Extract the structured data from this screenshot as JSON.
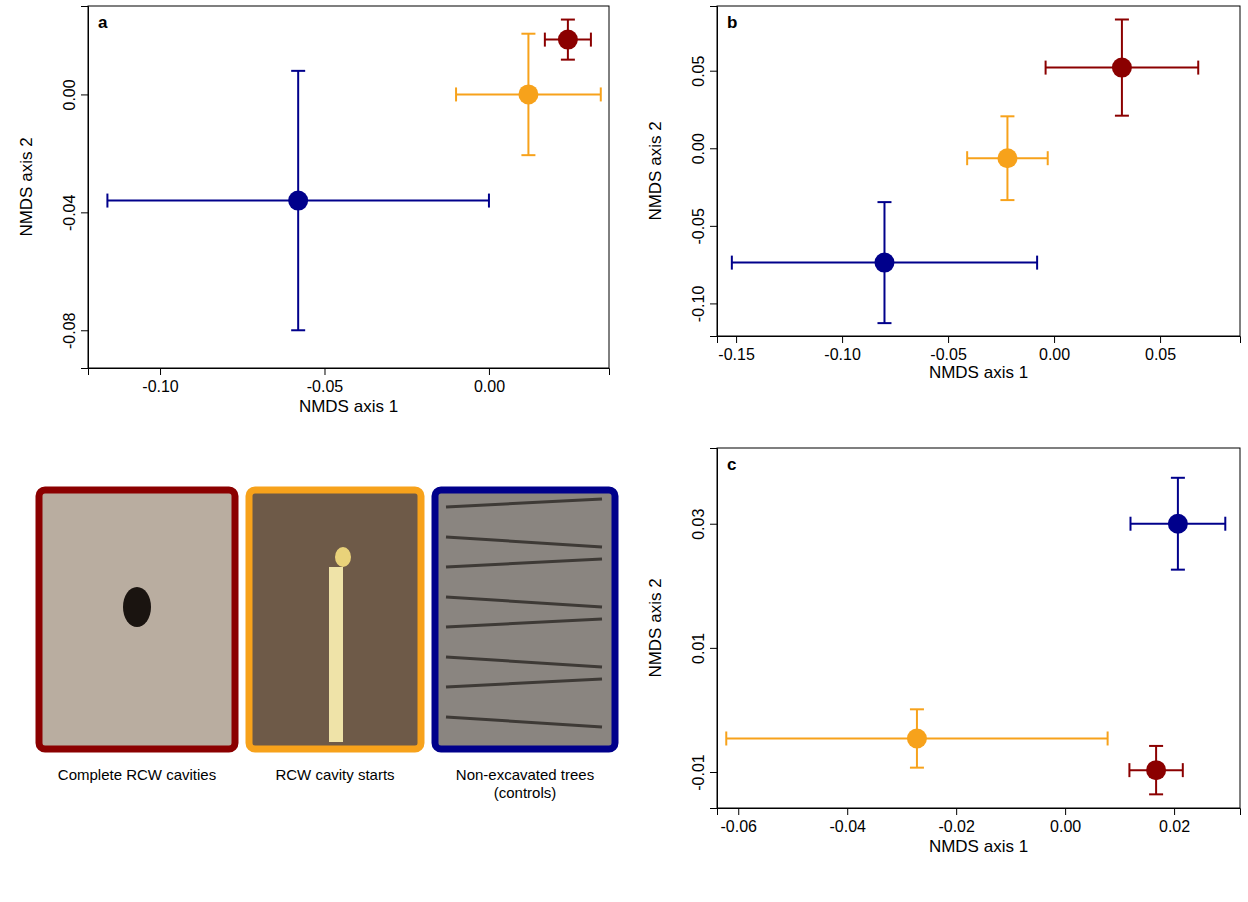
{
  "chart_data": [
    {
      "type": "scatter",
      "title": "a",
      "x_label": "NMDS axis 1",
      "y_label": "NMDS axis 2",
      "xlim": [
        -0.1219,
        0.0365
      ],
      "ylim": [
        -0.0928,
        0.03
      ],
      "xticks": [
        {
          "value": -0.1,
          "label": "-0.10"
        },
        {
          "value": -0.05,
          "label": "-0.05"
        },
        {
          "value": 0,
          "label": "0.00"
        }
      ],
      "yticks": [
        {
          "value": -0.08,
          "label": "-0.08"
        },
        {
          "value": -0.04,
          "label": "-0.04"
        },
        {
          "value": 0,
          "label": "0.00"
        }
      ],
      "legend": "bottom",
      "series": [
        {
          "name": "Complete RCW cavities",
          "color": "#8b0000",
          "marker": "circle",
          "x": [
            0.024
          ],
          "values": [
            0.0186
          ],
          "x_error": [
            0.007
          ],
          "y_error": [
            0.0068
          ]
        },
        {
          "name": "RCW cavity starts",
          "color": "#f7a21b",
          "marker": "circle",
          "x": [
            0.012
          ],
          "values": [
            0.0
          ],
          "x_error": [
            0.022
          ],
          "y_error": [
            0.0206
          ]
        },
        {
          "name": "Non-excavated trees (controls)",
          "color": "#00008b",
          "marker": "circle",
          "x": [
            -0.058
          ],
          "values": [
            -0.036
          ],
          "x_error": [
            0.058
          ],
          "y_error": [
            0.044
          ]
        }
      ]
    },
    {
      "type": "scatter",
      "title": "b",
      "x_label": "NMDS axis 1",
      "y_label": "NMDS axis 2",
      "xlim": [
        -0.159,
        0.0877
      ],
      "ylim": [
        -0.121,
        0.0917
      ],
      "xticks": [
        {
          "value": -0.15,
          "label": "-0.15"
        },
        {
          "value": -0.1,
          "label": "-0.10"
        },
        {
          "value": -0.05,
          "label": "-0.05"
        },
        {
          "value": 0,
          "label": "0.00"
        },
        {
          "value": 0.05,
          "label": "0.05"
        }
      ],
      "yticks": [
        {
          "value": -0.1,
          "label": "-0.10"
        },
        {
          "value": -0.05,
          "label": "-0.05"
        },
        {
          "value": 0,
          "label": "0.00"
        },
        {
          "value": 0.05,
          "label": "0.05"
        }
      ],
      "series": [
        {
          "color": "#8b0000",
          "marker": "circle",
          "x": [
            0.032
          ],
          "values": [
            0.052
          ],
          "x_error": [
            0.036
          ],
          "y_error": [
            0.031
          ]
        },
        {
          "color": "#f7a21b",
          "marker": "circle",
          "x": [
            -0.022
          ],
          "values": [
            -0.0064
          ],
          "x_error": [
            0.019
          ],
          "y_error": [
            0.027
          ]
        },
        {
          "color": "#00008b",
          "marker": "circle",
          "x": [
            -0.08
          ],
          "values": [
            -0.0737
          ],
          "x_error": [
            0.072
          ],
          "y_error": [
            0.039
          ]
        }
      ]
    },
    {
      "type": "scatter",
      "title": "c",
      "x_label": "NMDS axis 1",
      "y_label": "NMDS axis 2",
      "xlim": [
        -0.0639,
        0.0321
      ],
      "ylim": [
        -0.0158,
        0.0422
      ],
      "xticks": [
        {
          "value": -0.06,
          "label": "-0.06"
        },
        {
          "value": -0.04,
          "label": "-0.04"
        },
        {
          "value": -0.02,
          "label": "-0.02"
        },
        {
          "value": 0,
          "label": "0.00"
        },
        {
          "value": 0.02,
          "label": "0.02"
        }
      ],
      "yticks": [
        {
          "value": -0.01,
          "label": "-0.01"
        },
        {
          "value": 0.01,
          "label": "0.01"
        },
        {
          "value": 0.03,
          "label": "0.03"
        }
      ],
      "series": [
        {
          "color": "#8b0000",
          "marker": "circle",
          "x": [
            0.0167
          ],
          "values": [
            -0.0097
          ],
          "x_error": [
            0.0049
          ],
          "y_error": [
            0.0039
          ]
        },
        {
          "color": "#f7a21b",
          "marker": "circle",
          "x": [
            -0.0272
          ],
          "values": [
            -0.0046
          ],
          "x_error": [
            0.035
          ],
          "y_error": [
            0.0047
          ]
        },
        {
          "color": "#00008b",
          "marker": "circle",
          "x": [
            0.0207
          ],
          "values": [
            0.03
          ],
          "x_error": [
            0.0087
          ],
          "y_error": [
            0.0074
          ]
        }
      ]
    }
  ]
}
